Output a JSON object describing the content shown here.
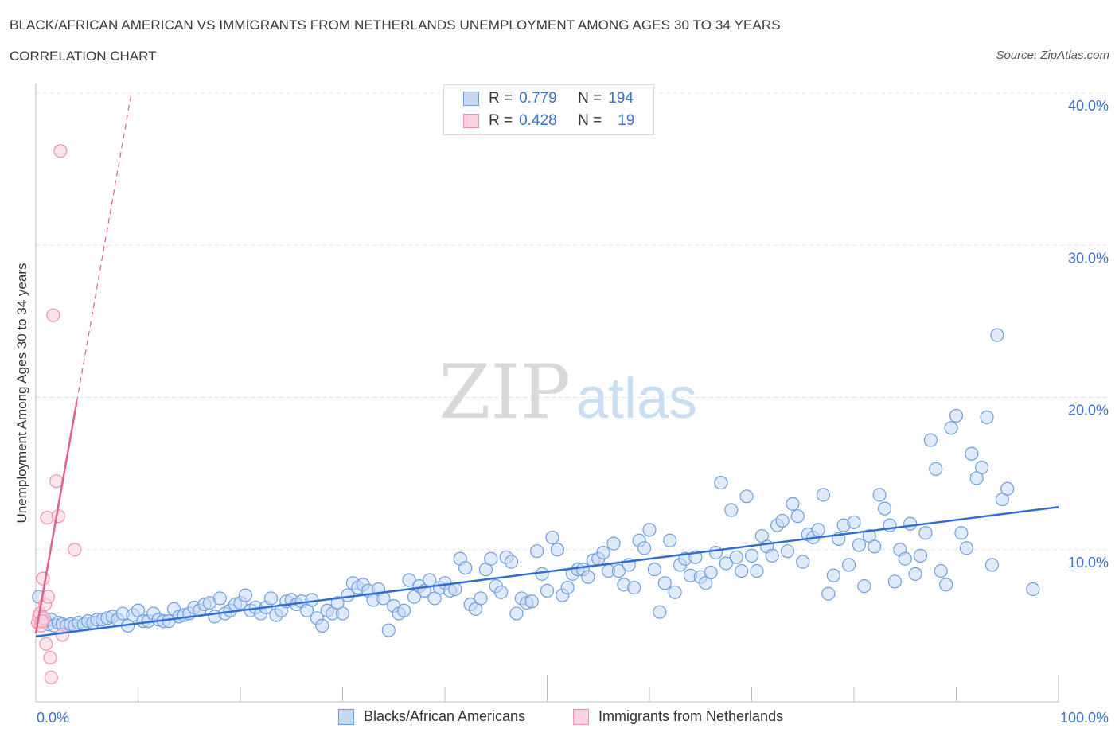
{
  "header": {
    "title": "BLACK/AFRICAN AMERICAN VS IMMIGRANTS FROM NETHERLANDS UNEMPLOYMENT AMONG AGES 30 TO 34 YEARS",
    "subtitle": "CORRELATION CHART",
    "source": "Source: ZipAtlas.com"
  },
  "watermark": {
    "zip": "ZIP",
    "atlas": "atlas"
  },
  "legend": {
    "r_label": "R =",
    "n_label": "N =",
    "rows": [
      {
        "r": "0.779",
        "n": "194"
      },
      {
        "r": "0.428",
        "n": "19"
      }
    ]
  },
  "bottom_legend": [
    "Blacks/African Americans",
    "Immigrants from Netherlands"
  ],
  "colors": {
    "blue_fill": "#c5d9f5",
    "blue_stroke": "#6f9ee0",
    "blue_line": "#2f6fd0",
    "pink_fill": "#fbd3de",
    "pink_stroke": "#f090ad",
    "pink_line": "#e0608c",
    "grid": "#e3e3e3",
    "axis_text": "#3b73c6"
  },
  "chart_data": {
    "type": "scatter",
    "title": "BLACK/AFRICAN AMERICAN VS IMMIGRANTS FROM NETHERLANDS UNEMPLOYMENT AMONG AGES 30 TO 34 YEARS",
    "xlabel": "",
    "ylabel": "Unemployment Among Ages 30 to 34 years",
    "xlim": [
      0,
      100
    ],
    "ylim": [
      0,
      40
    ],
    "x_tick_labels": [
      "0.0%",
      "100.0%"
    ],
    "y_ticks": [
      10,
      20,
      30,
      40
    ],
    "y_tick_labels": [
      "10.0%",
      "20.0%",
      "30.0%",
      "40.0%"
    ],
    "grid": true,
    "legend_position": "top-center",
    "series": [
      {
        "name": "Blacks/African Americans",
        "R": 0.779,
        "N": 194,
        "trend": {
          "x": [
            0,
            100
          ],
          "y": [
            4.3,
            12.8
          ]
        },
        "points": [
          [
            0.3,
            6.9
          ],
          [
            0.6,
            5.6
          ],
          [
            0.9,
            5.3
          ],
          [
            1.2,
            5.1
          ],
          [
            1.5,
            5.4
          ],
          [
            1.8,
            5.0
          ],
          [
            2.2,
            5.2
          ],
          [
            2.6,
            5.1
          ],
          [
            3.0,
            5.0
          ],
          [
            3.4,
            5.1
          ],
          [
            3.8,
            5.0
          ],
          [
            4.2,
            5.2
          ],
          [
            4.7,
            5.1
          ],
          [
            5.1,
            5.3
          ],
          [
            5.6,
            5.2
          ],
          [
            6.0,
            5.4
          ],
          [
            6.5,
            5.4
          ],
          [
            7.0,
            5.5
          ],
          [
            7.5,
            5.6
          ],
          [
            8.0,
            5.4
          ],
          [
            8.5,
            5.8
          ],
          [
            9.0,
            5.0
          ],
          [
            9.5,
            5.7
          ],
          [
            10.0,
            6.0
          ],
          [
            10.5,
            5.3
          ],
          [
            11.0,
            5.3
          ],
          [
            11.5,
            5.8
          ],
          [
            12.0,
            5.4
          ],
          [
            12.5,
            5.3
          ],
          [
            13.0,
            5.3
          ],
          [
            13.5,
            6.1
          ],
          [
            14.0,
            5.6
          ],
          [
            14.5,
            5.7
          ],
          [
            15.0,
            5.8
          ],
          [
            15.5,
            6.2
          ],
          [
            16.0,
            6.0
          ],
          [
            16.5,
            6.4
          ],
          [
            17.0,
            6.5
          ],
          [
            17.5,
            5.6
          ],
          [
            18.0,
            6.8
          ],
          [
            18.5,
            5.8
          ],
          [
            19.0,
            6.0
          ],
          [
            19.5,
            6.4
          ],
          [
            20.0,
            6.5
          ],
          [
            20.5,
            7.0
          ],
          [
            21.0,
            6.0
          ],
          [
            21.5,
            6.2
          ],
          [
            22.0,
            5.8
          ],
          [
            22.5,
            6.2
          ],
          [
            23.0,
            6.8
          ],
          [
            23.5,
            5.7
          ],
          [
            24.0,
            6.0
          ],
          [
            24.5,
            6.6
          ],
          [
            25.0,
            6.7
          ],
          [
            25.5,
            6.4
          ],
          [
            26.0,
            6.6
          ],
          [
            26.5,
            6.0
          ],
          [
            27.0,
            6.7
          ],
          [
            27.5,
            5.5
          ],
          [
            28.0,
            5.0
          ],
          [
            28.5,
            6.0
          ],
          [
            29.0,
            5.8
          ],
          [
            29.5,
            6.5
          ],
          [
            30.0,
            5.8
          ],
          [
            30.5,
            7.0
          ],
          [
            31.0,
            7.8
          ],
          [
            31.5,
            7.5
          ],
          [
            32.0,
            7.7
          ],
          [
            32.5,
            7.3
          ],
          [
            33.0,
            6.7
          ],
          [
            33.5,
            7.4
          ],
          [
            34.0,
            6.8
          ],
          [
            34.5,
            4.7
          ],
          [
            35.0,
            6.3
          ],
          [
            35.5,
            5.8
          ],
          [
            36.0,
            6.0
          ],
          [
            36.5,
            8.0
          ],
          [
            37.0,
            6.9
          ],
          [
            37.5,
            7.6
          ],
          [
            38.0,
            7.3
          ],
          [
            38.5,
            8.0
          ],
          [
            39.0,
            6.8
          ],
          [
            39.5,
            7.5
          ],
          [
            40.0,
            7.8
          ],
          [
            40.5,
            7.3
          ],
          [
            41.0,
            7.4
          ],
          [
            41.5,
            9.4
          ],
          [
            42.0,
            8.8
          ],
          [
            42.5,
            6.4
          ],
          [
            43.0,
            6.1
          ],
          [
            43.5,
            6.8
          ],
          [
            44.0,
            8.7
          ],
          [
            44.5,
            9.4
          ],
          [
            45.0,
            7.6
          ],
          [
            45.5,
            7.2
          ],
          [
            46.0,
            9.5
          ],
          [
            46.5,
            9.2
          ],
          [
            47.0,
            5.8
          ],
          [
            47.5,
            6.8
          ],
          [
            48.0,
            6.5
          ],
          [
            48.5,
            6.6
          ],
          [
            49.0,
            9.9
          ],
          [
            49.5,
            8.4
          ],
          [
            50.0,
            7.3
          ],
          [
            50.5,
            10.8
          ],
          [
            51.0,
            10.0
          ],
          [
            51.5,
            7.0
          ],
          [
            52.0,
            7.5
          ],
          [
            52.5,
            8.4
          ],
          [
            53.0,
            8.7
          ],
          [
            53.5,
            8.7
          ],
          [
            54.0,
            8.2
          ],
          [
            54.5,
            9.3
          ],
          [
            55.0,
            9.4
          ],
          [
            55.5,
            9.8
          ],
          [
            56.0,
            8.6
          ],
          [
            56.5,
            10.4
          ],
          [
            57.0,
            8.6
          ],
          [
            57.5,
            7.7
          ],
          [
            58.0,
            9.0
          ],
          [
            58.5,
            7.5
          ],
          [
            59.0,
            10.6
          ],
          [
            59.5,
            10.1
          ],
          [
            60.0,
            11.3
          ],
          [
            60.5,
            8.7
          ],
          [
            61.0,
            5.9
          ],
          [
            61.5,
            7.8
          ],
          [
            62.0,
            10.6
          ],
          [
            62.5,
            7.2
          ],
          [
            63.0,
            9.0
          ],
          [
            63.5,
            9.4
          ],
          [
            64.0,
            8.3
          ],
          [
            64.5,
            9.5
          ],
          [
            65.0,
            8.2
          ],
          [
            65.5,
            7.8
          ],
          [
            66.0,
            8.5
          ],
          [
            66.5,
            9.8
          ],
          [
            67.0,
            14.4
          ],
          [
            67.5,
            9.1
          ],
          [
            68.0,
            12.6
          ],
          [
            68.5,
            9.5
          ],
          [
            69.0,
            8.6
          ],
          [
            69.5,
            13.5
          ],
          [
            70.0,
            9.6
          ],
          [
            70.5,
            8.6
          ],
          [
            71.0,
            10.9
          ],
          [
            71.5,
            10.2
          ],
          [
            72.0,
            9.6
          ],
          [
            72.5,
            11.6
          ],
          [
            73.0,
            11.9
          ],
          [
            73.5,
            9.9
          ],
          [
            74.0,
            13.0
          ],
          [
            74.5,
            12.2
          ],
          [
            75.0,
            9.2
          ],
          [
            75.5,
            11.0
          ],
          [
            76.0,
            10.8
          ],
          [
            76.5,
            11.3
          ],
          [
            77.0,
            13.6
          ],
          [
            77.5,
            7.1
          ],
          [
            78.0,
            8.3
          ],
          [
            78.5,
            10.7
          ],
          [
            79.0,
            11.6
          ],
          [
            79.5,
            9.0
          ],
          [
            80.0,
            11.8
          ],
          [
            80.5,
            10.3
          ],
          [
            81.0,
            7.6
          ],
          [
            81.5,
            10.9
          ],
          [
            82.0,
            10.2
          ],
          [
            82.5,
            13.6
          ],
          [
            83.0,
            12.7
          ],
          [
            83.5,
            11.6
          ],
          [
            84.0,
            7.9
          ],
          [
            84.5,
            10.0
          ],
          [
            85.0,
            9.4
          ],
          [
            85.5,
            11.7
          ],
          [
            86.0,
            8.4
          ],
          [
            86.5,
            9.6
          ],
          [
            87.0,
            11.1
          ],
          [
            87.5,
            17.2
          ],
          [
            88.0,
            15.3
          ],
          [
            88.5,
            8.6
          ],
          [
            89.0,
            7.7
          ],
          [
            89.5,
            18.0
          ],
          [
            90.0,
            18.8
          ],
          [
            90.5,
            11.1
          ],
          [
            91.0,
            10.1
          ],
          [
            91.5,
            16.3
          ],
          [
            92.0,
            14.7
          ],
          [
            92.5,
            15.4
          ],
          [
            93.0,
            18.7
          ],
          [
            93.5,
            9.0
          ],
          [
            94.0,
            24.1
          ],
          [
            94.5,
            13.3
          ],
          [
            95.0,
            14.0
          ],
          [
            97.5,
            7.4
          ]
        ]
      },
      {
        "name": "Immigrants from Netherlands",
        "R": 0.428,
        "N": 19,
        "trend": {
          "x": [
            0,
            4
          ],
          "y": [
            4.5,
            19.7
          ],
          "x_dashed_end": 9.3
        },
        "points": [
          [
            0.2,
            5.2
          ],
          [
            0.3,
            5.6
          ],
          [
            0.4,
            5.8
          ],
          [
            0.5,
            5.0
          ],
          [
            0.7,
            8.1
          ],
          [
            0.8,
            5.5
          ],
          [
            0.9,
            6.4
          ],
          [
            1.0,
            3.8
          ],
          [
            1.1,
            12.1
          ],
          [
            1.2,
            6.9
          ],
          [
            1.4,
            2.9
          ],
          [
            1.5,
            1.6
          ],
          [
            1.7,
            25.4
          ],
          [
            2.0,
            14.5
          ],
          [
            2.2,
            12.2
          ],
          [
            2.4,
            36.2
          ],
          [
            2.6,
            4.4
          ],
          [
            3.8,
            10.0
          ],
          [
            0.6,
            5.3
          ]
        ]
      }
    ]
  }
}
